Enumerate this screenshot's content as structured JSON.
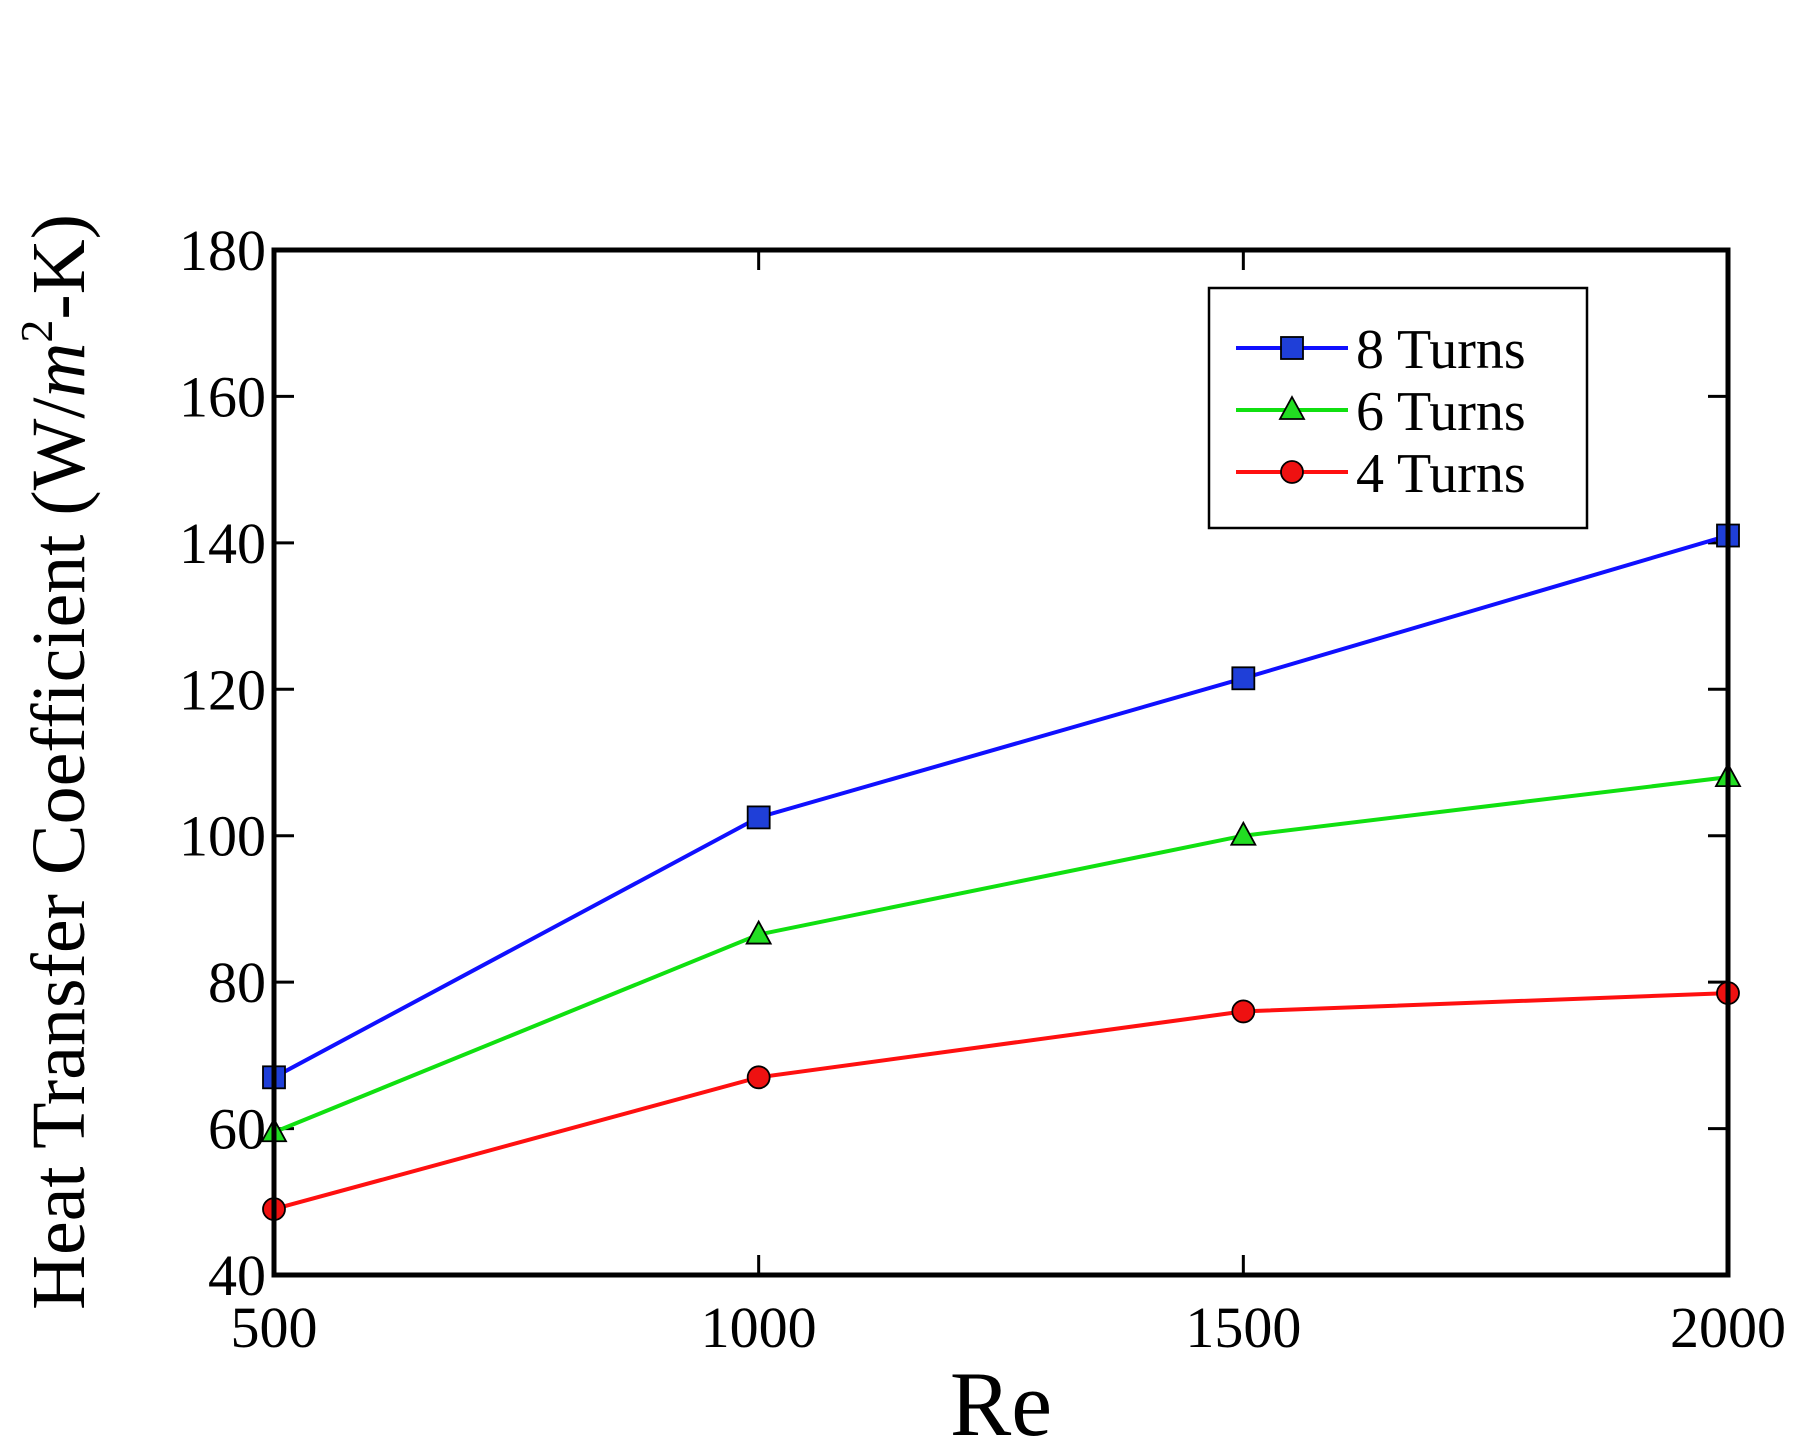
{
  "chart_data": {
    "type": "line",
    "title": "",
    "xlabel": "Re",
    "ylabel": "Heat Transfer Coefficient (W/m²-K)",
    "ylabel_parts": {
      "prefix": "Heat Transfer Coefficient (W/",
      "unit_base": "m",
      "unit_exp": "2",
      "suffix": "-K)"
    },
    "x": [
      500,
      1000,
      1500,
      2000
    ],
    "xlim": [
      500,
      2000
    ],
    "ylim": [
      40,
      180
    ],
    "xticks": [
      500,
      1000,
      1500,
      2000
    ],
    "yticks": [
      40,
      60,
      80,
      100,
      120,
      140,
      160,
      180
    ],
    "grid": false,
    "legend_position": "top-right",
    "series": [
      {
        "name": "8 Turns",
        "label": "8  Turns",
        "marker": "square",
        "color": "#1010ff",
        "markerColor": "#1f3fd8",
        "values": [
          67,
          102.5,
          121.5,
          141
        ]
      },
      {
        "name": "6 Turns",
        "label": "6  Turns",
        "marker": "triangle",
        "color": "#10e010",
        "markerColor": "#22dd22",
        "values": [
          59.5,
          86.5,
          100,
          108
        ]
      },
      {
        "name": "4 Turns",
        "label": "4  Turns",
        "marker": "circle",
        "color": "#ff1010",
        "markerColor": "#ee1111",
        "values": [
          49,
          67,
          76,
          78.5
        ]
      }
    ]
  }
}
